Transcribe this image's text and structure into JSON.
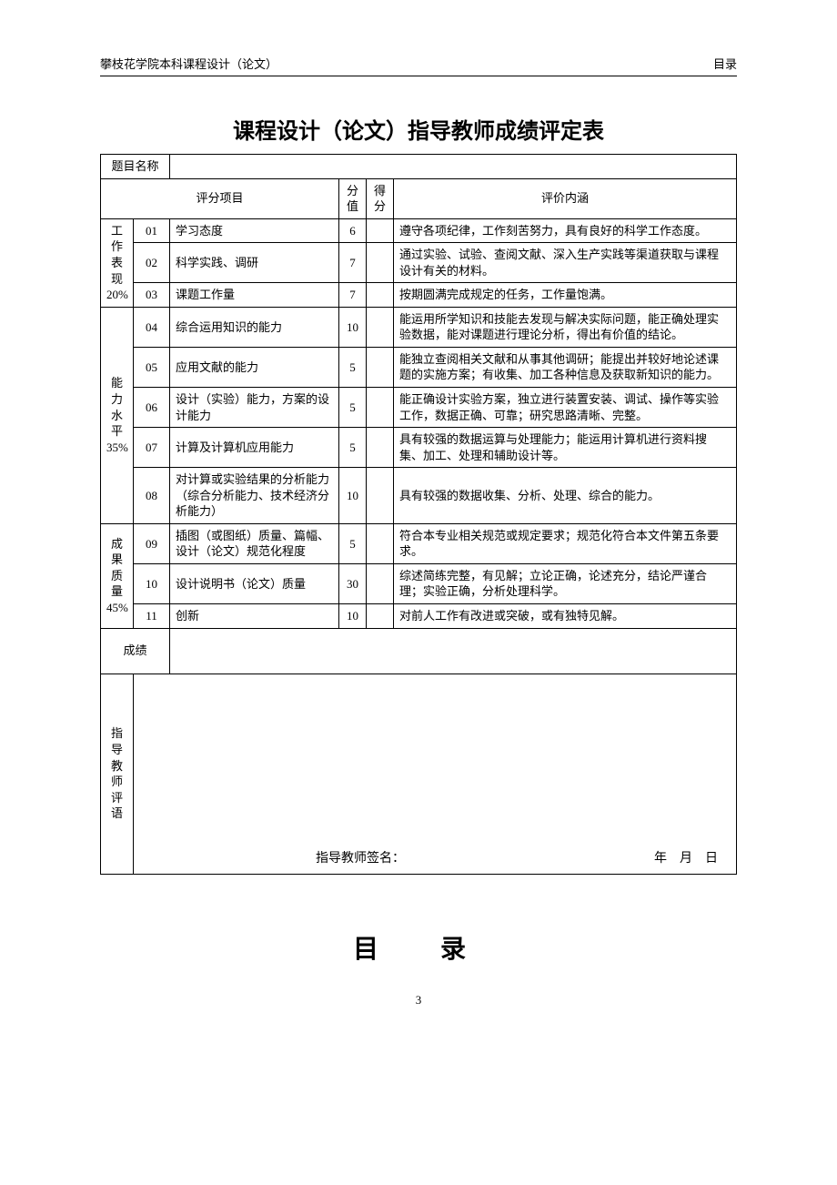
{
  "header": {
    "left": "攀枝花学院本科课程设计（论文）",
    "right": "目录"
  },
  "title": "课程设计（论文）指导教师成绩评定表",
  "labels": {
    "topic": "题目名称",
    "item": "评分项目",
    "score_val": "分值",
    "score_got": "得分",
    "desc": "评价内涵",
    "grade": "成绩",
    "comment": "指导教师评语"
  },
  "groups": [
    {
      "name_lines": [
        "工",
        "作",
        "表",
        "现",
        "20%"
      ]
    },
    {
      "name_lines": [
        "能",
        "力",
        "水",
        "平",
        "35%"
      ]
    },
    {
      "name_lines": [
        "成",
        "果",
        "质",
        "量",
        "45%"
      ]
    }
  ],
  "rows": [
    {
      "g": 0,
      "no": "01",
      "item": "学习态度",
      "val": "6",
      "desc": "遵守各项纪律，工作刻苦努力，具有良好的科学工作态度。"
    },
    {
      "g": 0,
      "no": "02",
      "item": "科学实践、调研",
      "val": "7",
      "desc": "通过实验、试验、查阅文献、深入生产实践等渠道获取与课程设计有关的材料。"
    },
    {
      "g": 0,
      "no": "03",
      "item": "课题工作量",
      "val": "7",
      "desc": "按期圆满完成规定的任务，工作量饱满。"
    },
    {
      "g": 1,
      "no": "04",
      "item": "综合运用知识的能力",
      "val": "10",
      "desc": "能运用所学知识和技能去发现与解决实际问题，能正确处理实验数据，能对课题进行理论分析，得出有价值的结论。"
    },
    {
      "g": 1,
      "no": "05",
      "item": "应用文献的能力",
      "val": "5",
      "desc": "能独立查阅相关文献和从事其他调研；能提出并较好地论述课题的实施方案；有收集、加工各种信息及获取新知识的能力。"
    },
    {
      "g": 1,
      "no": "06",
      "item": "设计（实验）能力，方案的设计能力",
      "val": "5",
      "desc": "能正确设计实验方案，独立进行装置安装、调试、操作等实验工作，数据正确、可靠；研究思路清晰、完整。"
    },
    {
      "g": 1,
      "no": "07",
      "item": "计算及计算机应用能力",
      "val": "5",
      "desc": "具有较强的数据运算与处理能力；能运用计算机进行资料搜集、加工、处理和辅助设计等。"
    },
    {
      "g": 1,
      "no": "08",
      "item": "对计算或实验结果的分析能力（综合分析能力、技术经济分析能力）",
      "val": "10",
      "desc": "具有较强的数据收集、分析、处理、综合的能力。"
    },
    {
      "g": 2,
      "no": "09",
      "item": "插图（或图纸）质量、篇幅、设计（论文）规范化程度",
      "val": "5",
      "desc": "符合本专业相关规范或规定要求；规范化符合本文件第五条要求。"
    },
    {
      "g": 2,
      "no": "10",
      "item": "设计说明书（论文）质量",
      "val": "30",
      "desc": "综述简练完整，有见解；立论正确，论述充分，结论严谨合理；实验正确，分析处理科学。"
    },
    {
      "g": 2,
      "no": "11",
      "item": "创新",
      "val": "10",
      "desc": "对前人工作有改进或突破，或有独特见解。"
    }
  ],
  "signature": {
    "label": "指导教师签名：",
    "date": "年　月　日"
  },
  "toc_title": "目　录",
  "page_number": "3"
}
